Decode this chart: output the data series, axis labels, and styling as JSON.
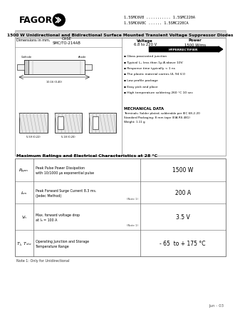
{
  "bg_color": "#ffffff",
  "fagor_text": "FAGOR",
  "part1": "1.5SMC6V8 ........... 1.5SMC220A",
  "part2": "1.5SMC6V8C ...... 1.5SMC220CA",
  "main_title": "1500 W Unidirectional and Bidirectional Surface Mounted Transient Voltage Suppressor Diodes",
  "dim_label": "Dimensions in mm.",
  "case_label": "CASE\nSMC/TO-214AB",
  "voltage_header": "Voltage",
  "voltage_val": "6.8 to 220 V",
  "power_header": "Power",
  "power_val": "1500 W/ms",
  "hyperrectifier": "HYPERRECTIFIER",
  "features": [
    "Glass passivated junction",
    "Typical I₂ₓ less than 1μ A above 10V",
    "Response time typically < 1 ns",
    "The plastic material carries UL 94 V-0",
    "Low profile package",
    "Easy pick and place",
    "High temperature soldering 260 °C 10 sec"
  ],
  "mech_title": "MECHANICAL DATA",
  "mech_lines": [
    "Terminals: Solder plated, solderable per IEC 68-2-20",
    "Standard Packaging: 8 mm tape (EIA RS 481)",
    "Weight: 1.11 g"
  ],
  "table_title": "Maximum Ratings and Electrical Characteristics at 28 °C",
  "rows": [
    {
      "symbol": "Pₚₚₘ",
      "desc1": "Peak Pulse Power Dissipation",
      "desc2": "with 10/1000 μs exponential pulse",
      "note": "",
      "value": "1500 W"
    },
    {
      "symbol": "Iₛₘ",
      "desc1": "Peak Forward Surge Current 8.3 ms.",
      "desc2": "(Jedec Method)",
      "note": "(Note 1)",
      "value": "200 A"
    },
    {
      "symbol": "Vₙ",
      "desc1": "Max. forward voltage drop",
      "desc2": "at Iₙ = 100 A",
      "note": "(Note 1)",
      "value": "3.5 V"
    },
    {
      "symbol": "Tⱼ, Tₛₜₒ",
      "desc1": "Operating Junction and Storage",
      "desc2": "Temperature Range",
      "note": "",
      "value": "- 65  to + 175 °C"
    }
  ],
  "note_text": "Note 1: Only for Unidirectional",
  "date_text": "Jun - 03"
}
